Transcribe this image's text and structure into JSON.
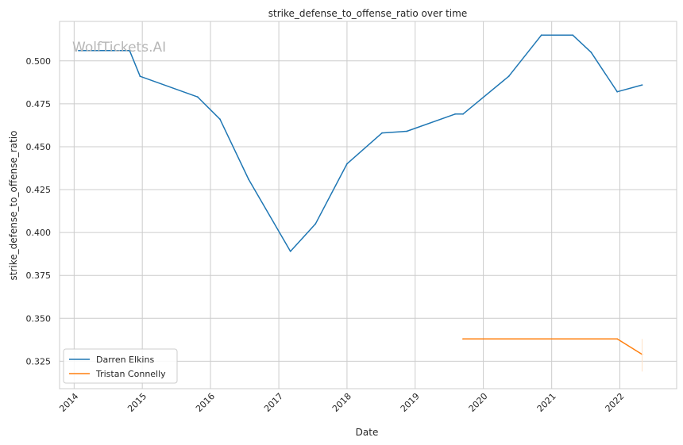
{
  "watermark": "WolfTickets.AI",
  "chart_data": {
    "type": "line",
    "title": "strike_defense_to_offense_ratio over time",
    "xlabel": "Date",
    "ylabel": "strike_defense_to_offense_ratio",
    "x_ticks": [
      "2014",
      "2015",
      "2016",
      "2017",
      "2018",
      "2019",
      "2020",
      "2021",
      "2022"
    ],
    "y_ticks": [
      "0.325",
      "0.350",
      "0.375",
      "0.400",
      "0.425",
      "0.450",
      "0.475",
      "0.500"
    ],
    "xlim": [
      "2013-10-15",
      "2022-11-01"
    ],
    "ylim": [
      0.309,
      0.523
    ],
    "grid": true,
    "legend_position": "lower left",
    "series": [
      {
        "name": "Darren Elkins",
        "color": "#1f77b4",
        "points": [
          [
            "2014-01-25",
            0.506
          ],
          [
            "2014-10-25",
            0.506
          ],
          [
            "2014-12-20",
            0.491
          ],
          [
            "2015-10-24",
            0.479
          ],
          [
            "2016-02-21",
            0.466
          ],
          [
            "2016-07-23",
            0.431
          ],
          [
            "2017-03-04",
            0.389
          ],
          [
            "2017-07-16",
            0.405
          ],
          [
            "2018-01-01",
            0.44
          ],
          [
            "2018-07-08",
            0.458
          ],
          [
            "2018-11-17",
            0.459
          ],
          [
            "2019-08-03",
            0.469
          ],
          [
            "2019-09-14",
            0.469
          ],
          [
            "2020-05-16",
            0.491
          ],
          [
            "2020-11-07",
            0.515
          ],
          [
            "2021-04-24",
            0.515
          ],
          [
            "2021-07-31",
            0.505
          ],
          [
            "2021-12-18",
            0.482
          ],
          [
            "2022-04-30",
            0.486
          ]
        ]
      },
      {
        "name": "Tristan Connelly",
        "color": "#ff7f0e",
        "points": [
          [
            "2019-09-14",
            0.338
          ],
          [
            "2021-12-18",
            0.338
          ],
          [
            "2022-04-30",
            0.329
          ]
        ]
      }
    ]
  }
}
